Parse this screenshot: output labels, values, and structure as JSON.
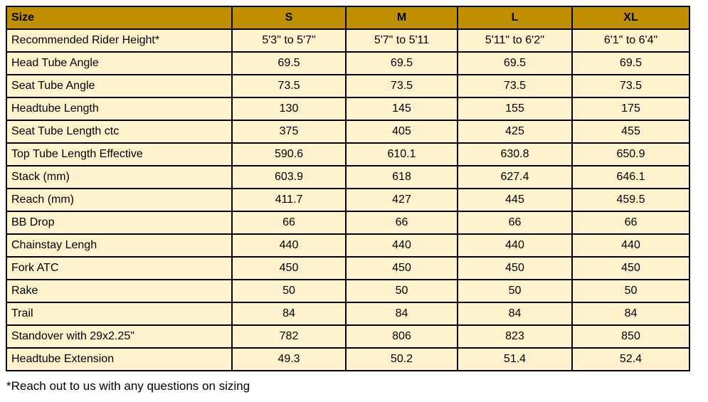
{
  "table": {
    "header": {
      "label": "Size",
      "columns": [
        "S",
        "M",
        "L",
        "XL"
      ]
    },
    "rows": [
      {
        "label": "Recommended Rider Height*",
        "values": [
          "5'3\" to 5'7\"",
          "5'7\" to 5'11",
          "5'11\" to 6'2''",
          "6'1\" to 6'4\""
        ]
      },
      {
        "label": "Head Tube Angle",
        "values": [
          "69.5",
          "69.5",
          "69.5",
          "69.5"
        ]
      },
      {
        "label": "Seat Tube Angle",
        "values": [
          "73.5",
          "73.5",
          "73.5",
          "73.5"
        ]
      },
      {
        "label": "Headtube Length",
        "values": [
          "130",
          "145",
          "155",
          "175"
        ]
      },
      {
        "label": "Seat Tube Length ctc",
        "values": [
          "375",
          "405",
          "425",
          "455"
        ]
      },
      {
        "label": "Top Tube Length Effective",
        "values": [
          "590.6",
          "610.1",
          "630.8",
          "650.9"
        ]
      },
      {
        "label": "Stack (mm)",
        "values": [
          "603.9",
          "618",
          "627.4",
          "646.1"
        ]
      },
      {
        "label": "Reach (mm)",
        "values": [
          "411.7",
          "427",
          "445",
          "459.5"
        ]
      },
      {
        "label": "BB Drop",
        "values": [
          "66",
          "66",
          "66",
          "66"
        ]
      },
      {
        "label": "Chainstay Lengh",
        "values": [
          "440",
          "440",
          "440",
          "440"
        ]
      },
      {
        "label": "Fork ATC",
        "values": [
          "450",
          "450",
          "450",
          "450"
        ]
      },
      {
        "label": "Rake",
        "values": [
          "50",
          "50",
          "50",
          "50"
        ]
      },
      {
        "label": "Trail",
        "values": [
          "84",
          "84",
          "84",
          "84"
        ]
      },
      {
        "label": "Standover with 29x2.25\"",
        "values": [
          "782",
          "806",
          "823",
          "850"
        ]
      },
      {
        "label": "Headtube Extension",
        "values": [
          "49.3",
          "50.2",
          "51.4",
          "52.4"
        ]
      }
    ]
  },
  "footnote": "*Reach out to us with any questions on sizing",
  "colors": {
    "header_bg": "#BF8F00",
    "row_bg": "#FFF2CC",
    "border": "#000000",
    "text": "#000000"
  }
}
